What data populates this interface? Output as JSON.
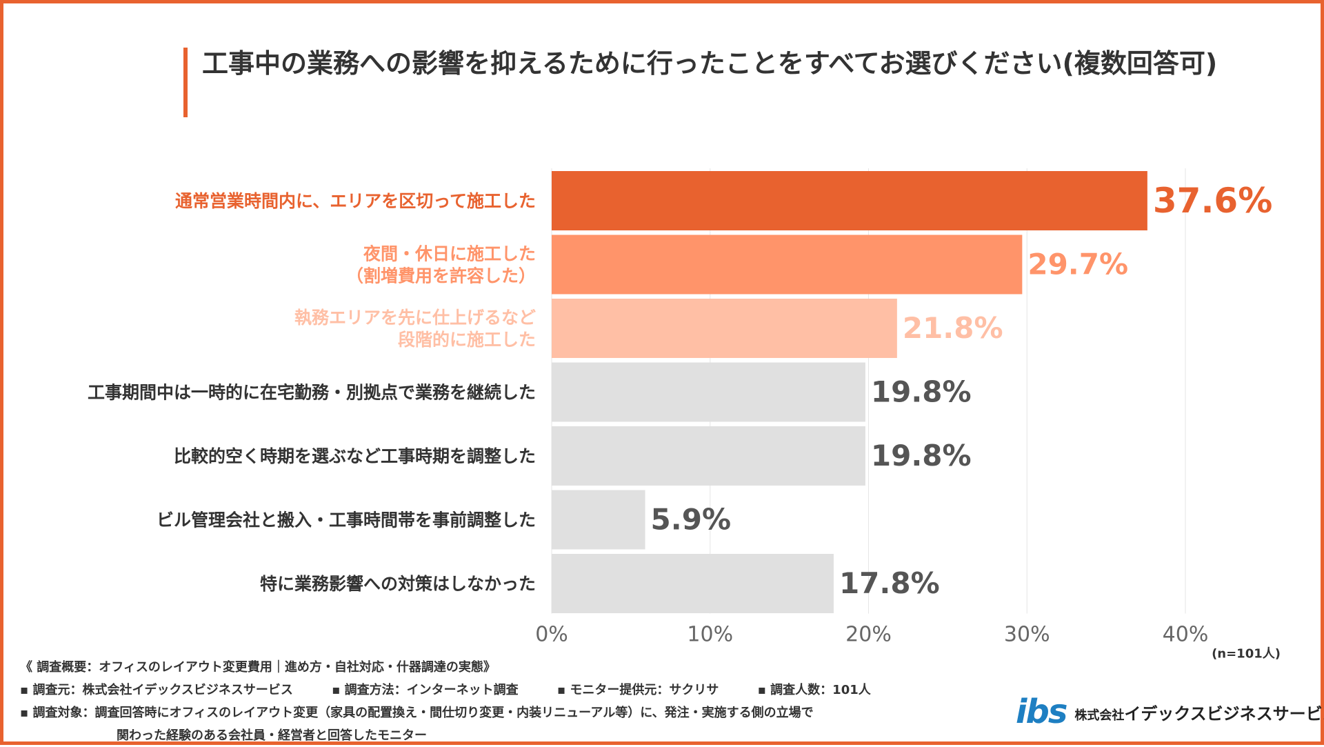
{
  "title": "工事中の業務への影響を抑えるために行ったことをすべてお選びください(複数回答可)",
  "colors": {
    "accent": "#e8622f",
    "bar1": "#e8622f",
    "bar2": "#ff946a",
    "bar3": "#ffbfa5",
    "bar_gray": "#e0e0e0",
    "value_gray": "#555555"
  },
  "chart_data": {
    "type": "bar",
    "orientation": "horizontal",
    "categories": [
      [
        "通常営業時間内に、エリアを区切って施工した"
      ],
      [
        "夜間・休日に施工した",
        "（割増費用を許容した）"
      ],
      [
        "執務エリアを先に仕上げるなど",
        "段階的に施工した"
      ],
      [
        "工事期間中は一時的に在宅勤務・別拠点で業務を継続した"
      ],
      [
        "比較的空く時期を選ぶなど工事時期を調整した"
      ],
      [
        "ビル管理会社と搬入・工事時間帯を事前調整した"
      ],
      [
        "特に業務影響への対策はしなかった"
      ]
    ],
    "values": [
      37.6,
      29.7,
      21.8,
      19.8,
      19.8,
      5.9,
      17.8
    ],
    "value_labels": [
      "37.6%",
      "29.7%",
      "21.8%",
      "19.8%",
      "19.8%",
      "5.9%",
      "17.8%"
    ],
    "xlim": [
      0,
      40
    ],
    "xticks": [
      0,
      10,
      20,
      30,
      40
    ],
    "xtick_labels": [
      "0%",
      "10%",
      "20%",
      "30%",
      "40%"
    ],
    "grid": true,
    "note": "(n=101人)"
  },
  "footer": {
    "line1": "《 調査概要：オフィスのレイアウト変更費用｜進め方・自社対応・什器調達の実態》",
    "line2": [
      "▪ 調査元：株式会社イデックスビジネスサービス",
      "▪ 調査方法：インターネット調査",
      "▪ モニター提供元：サクリサ",
      "▪ 調査人数：101人"
    ],
    "line3": "▪ 調査対象：調査回答時にオフィスのレイアウト変更（家具の配置換え・間仕切り変更・内装リニューアル等）に、発注・実施する側の立場で",
    "line4": "関わった経験のある会社員・経営者と回答したモニター"
  },
  "logo": {
    "mark": "ibs",
    "company_prefix": "株式会社",
    "company_name": "イデックスビジネスサービス"
  }
}
